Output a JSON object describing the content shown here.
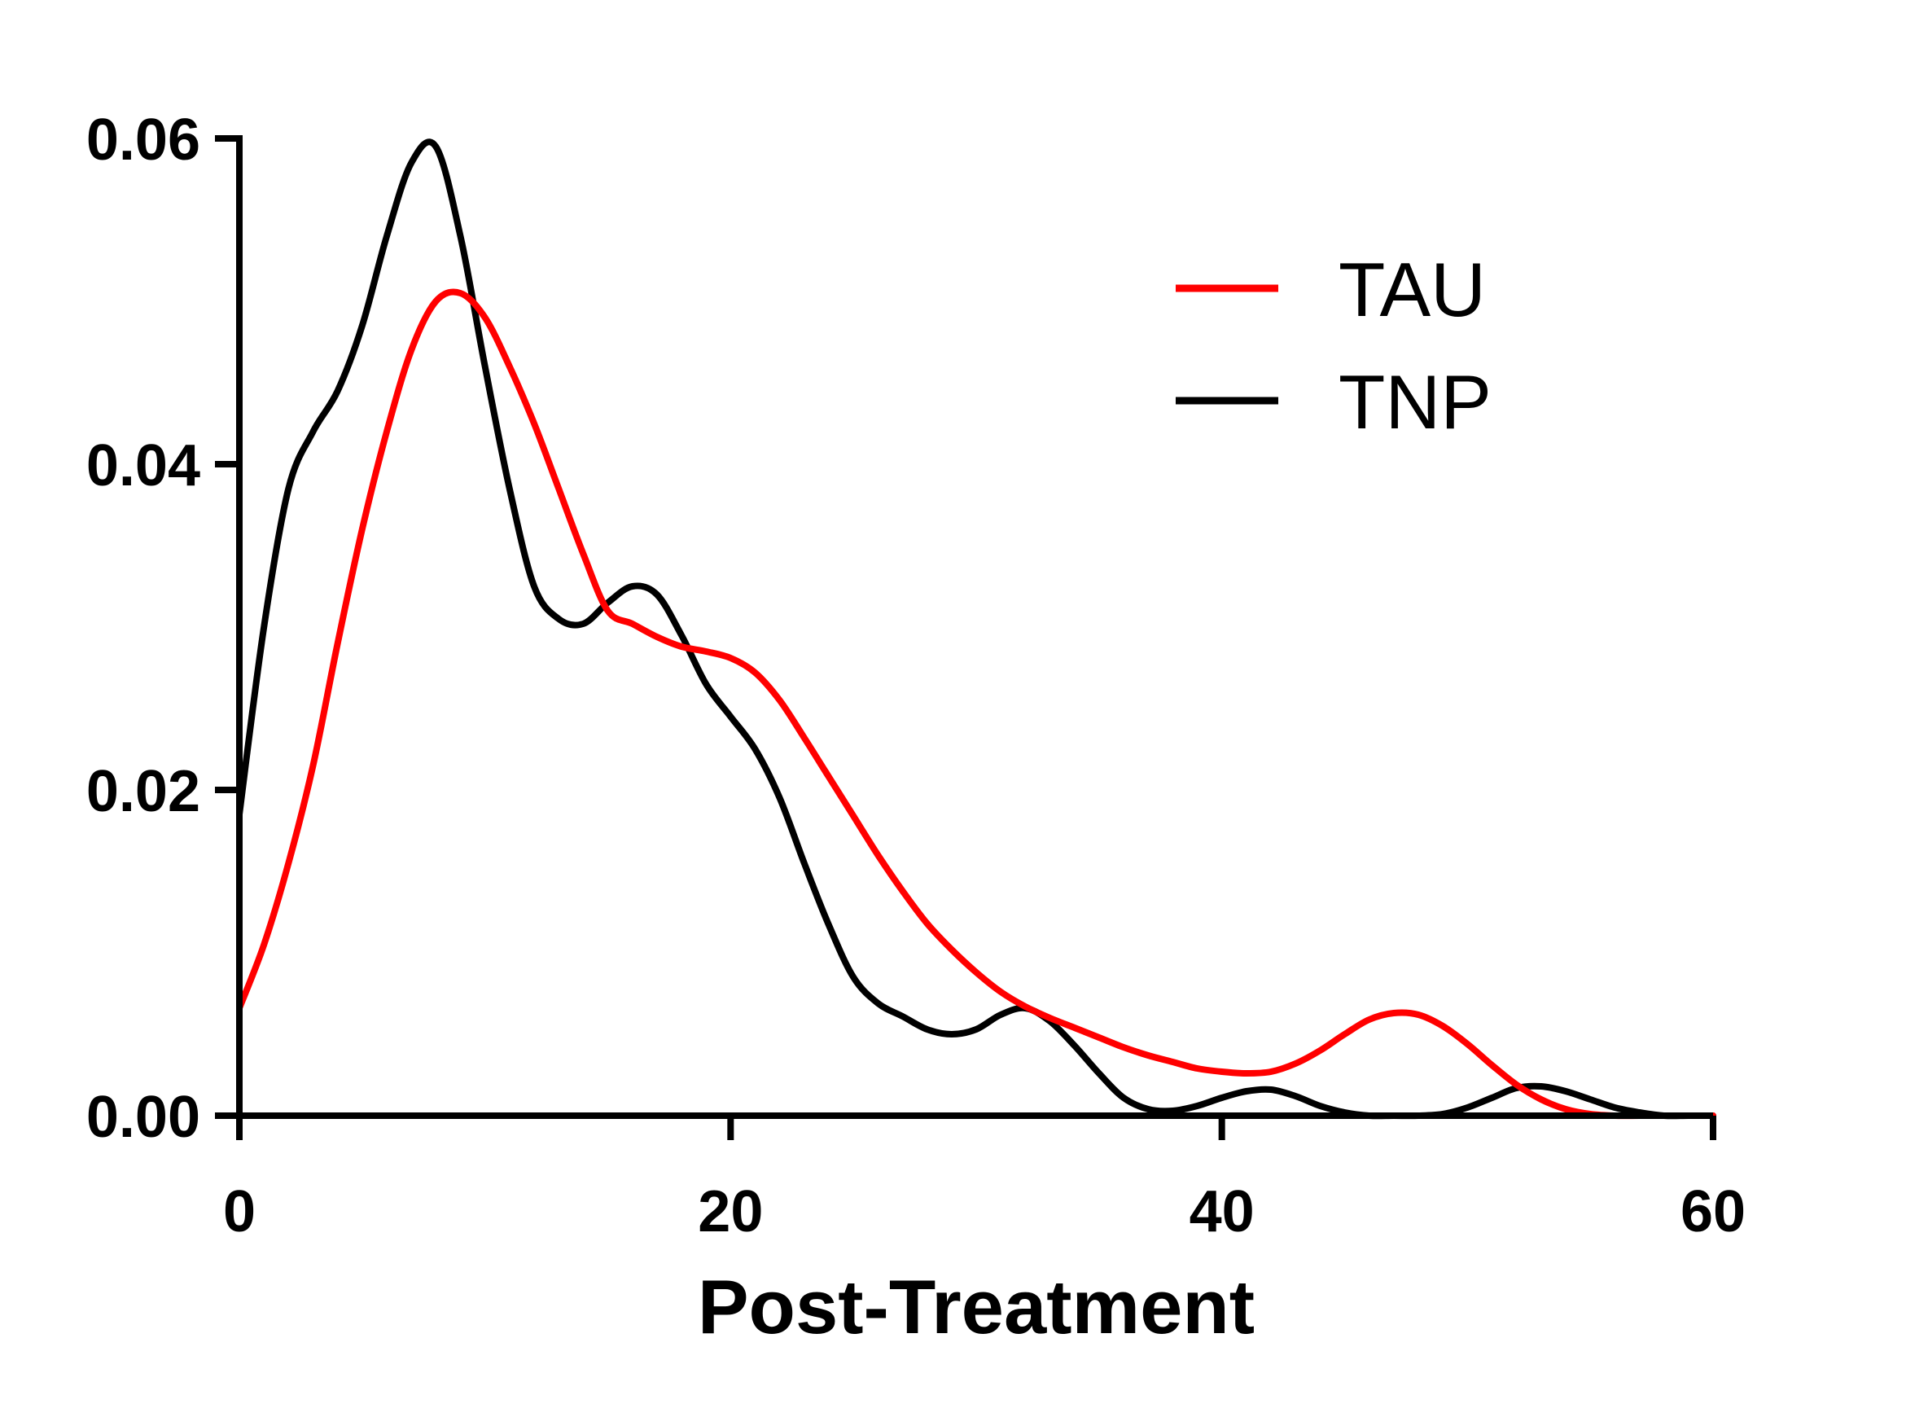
{
  "chart_data": {
    "type": "line",
    "title": "",
    "xlabel": "Post-Treatment",
    "ylabel": "",
    "xlim": [
      0,
      60
    ],
    "ylim": [
      0,
      0.06
    ],
    "xticks": [
      "0",
      "20",
      "40",
      "60"
    ],
    "xtick_values": [
      0,
      20,
      40,
      60
    ],
    "yticks": [
      "0.00",
      "0.02",
      "0.04",
      "0.06"
    ],
    "ytick_values": [
      0,
      0.02,
      0.04,
      0.06
    ],
    "legend_position": "top-right",
    "series": [
      {
        "name": "TAU",
        "color": "#ff0000",
        "x": [
          0,
          1,
          2,
          3,
          4,
          5,
          6,
          7,
          8,
          9,
          10,
          11,
          12,
          13,
          14,
          15,
          16,
          17,
          18,
          19,
          20,
          21,
          22,
          23,
          24,
          25,
          26,
          27,
          28,
          29,
          30,
          31,
          32,
          33,
          34,
          35,
          36,
          37,
          38,
          39,
          40,
          41,
          42,
          43,
          44,
          45,
          46,
          47,
          48,
          49,
          50,
          51,
          52,
          53,
          54,
          55,
          56,
          57,
          58,
          59,
          60
        ],
        "y": [
          0.0066,
          0.0105,
          0.0155,
          0.0215,
          0.029,
          0.036,
          0.042,
          0.047,
          0.05,
          0.0505,
          0.049,
          0.046,
          0.0425,
          0.0385,
          0.0345,
          0.031,
          0.0302,
          0.0294,
          0.0288,
          0.0285,
          0.0281,
          0.0272,
          0.0255,
          0.0232,
          0.0208,
          0.0184,
          0.016,
          0.0138,
          0.0118,
          0.0102,
          0.0088,
          0.0076,
          0.0067,
          0.006,
          0.0054,
          0.0048,
          0.0042,
          0.0037,
          0.0033,
          0.0029,
          0.0027,
          0.0026,
          0.0027,
          0.0032,
          0.004,
          0.005,
          0.0059,
          0.0063,
          0.0062,
          0.0055,
          0.0044,
          0.0031,
          0.0019,
          0.001,
          0.0004,
          0.0001,
          0.0,
          0.0,
          0.0,
          0.0,
          0.0
        ]
      },
      {
        "name": "TNP",
        "color": "#000000",
        "x": [
          0,
          1,
          2,
          3,
          4,
          5,
          6,
          7,
          8,
          9,
          10,
          11,
          12,
          13,
          14,
          15,
          16,
          17,
          18,
          19,
          20,
          21,
          22,
          23,
          24,
          25,
          26,
          27,
          28,
          29,
          30,
          31,
          32,
          33,
          34,
          35,
          36,
          37,
          38,
          39,
          40,
          41,
          42,
          43,
          44,
          45,
          46,
          47,
          48,
          49,
          50,
          51,
          52,
          53,
          54,
          55,
          56,
          57,
          58,
          59,
          60
        ],
        "y": [
          0.0185,
          0.03,
          0.0385,
          0.042,
          0.0445,
          0.0485,
          0.054,
          0.0585,
          0.0595,
          0.054,
          0.046,
          0.0385,
          0.0325,
          0.0305,
          0.0302,
          0.0315,
          0.0325,
          0.032,
          0.0295,
          0.0265,
          0.0245,
          0.0225,
          0.0195,
          0.0155,
          0.0117,
          0.0085,
          0.0069,
          0.0061,
          0.0053,
          0.005,
          0.0053,
          0.0062,
          0.0066,
          0.0058,
          0.0043,
          0.0026,
          0.0011,
          0.0004,
          0.0003,
          0.0006,
          0.0011,
          0.0015,
          0.0016,
          0.0012,
          0.0006,
          0.0002,
          0.0,
          0.0,
          0.0,
          0.0001,
          0.0005,
          0.0011,
          0.0017,
          0.0018,
          0.0015,
          0.001,
          0.0005,
          0.0002,
          0.0,
          0.0,
          0.0
        ]
      }
    ]
  }
}
